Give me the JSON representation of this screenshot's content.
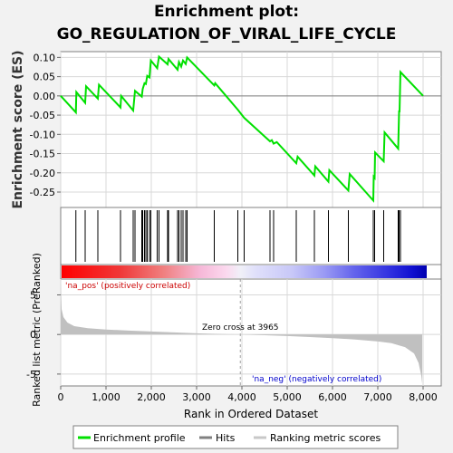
{
  "title_lines": [
    "Enrichment plot:",
    "GO_REGULATION_OF_VIRAL_LIFE_CYCLE"
  ],
  "chart_data": {
    "type": "line",
    "top_panel": {
      "ylabel": "Enrichment score (ES)",
      "ylim": [
        -0.29,
        0.115
      ],
      "yticks": [
        0.1,
        0.05,
        0.0,
        -0.05,
        -0.1,
        -0.15,
        -0.2,
        -0.25
      ],
      "ytick_labels": [
        "0.10",
        "0.05",
        "0.00",
        "-0.05",
        "-0.10",
        "-0.15",
        "-0.20",
        "-0.25"
      ],
      "series": {
        "color": "#00e000",
        "points": [
          [
            0,
            0.0
          ],
          [
            335,
            -0.043
          ],
          [
            345,
            0.01
          ],
          [
            540,
            -0.018
          ],
          [
            560,
            0.025
          ],
          [
            820,
            -0.007
          ],
          [
            845,
            0.029
          ],
          [
            1320,
            -0.03
          ],
          [
            1335,
            0.0
          ],
          [
            1600,
            -0.038
          ],
          [
            1640,
            0.013
          ],
          [
            1790,
            -0.002
          ],
          [
            1810,
            0.018
          ],
          [
            1850,
            0.033
          ],
          [
            1880,
            0.031
          ],
          [
            1910,
            0.052
          ],
          [
            1960,
            0.048
          ],
          [
            1990,
            0.092
          ],
          [
            2130,
            0.072
          ],
          [
            2170,
            0.102
          ],
          [
            2360,
            0.082
          ],
          [
            2380,
            0.096
          ],
          [
            2580,
            0.068
          ],
          [
            2610,
            0.088
          ],
          [
            2660,
            0.076
          ],
          [
            2700,
            0.092
          ],
          [
            2760,
            0.083
          ],
          [
            2790,
            0.1
          ],
          [
            3390,
            0.027
          ],
          [
            3410,
            0.033
          ],
          [
            3910,
            -0.036
          ],
          [
            4050,
            -0.057
          ],
          [
            4620,
            -0.118
          ],
          [
            4660,
            -0.115
          ],
          [
            4700,
            -0.124
          ],
          [
            4770,
            -0.12
          ],
          [
            5200,
            -0.175
          ],
          [
            5230,
            -0.158
          ],
          [
            5600,
            -0.207
          ],
          [
            5620,
            -0.183
          ],
          [
            5910,
            -0.223
          ],
          [
            5930,
            -0.193
          ],
          [
            6350,
            -0.246
          ],
          [
            6380,
            -0.203
          ],
          [
            6900,
            -0.272
          ],
          [
            6910,
            -0.21
          ],
          [
            6930,
            -0.213
          ],
          [
            6940,
            -0.147
          ],
          [
            7130,
            -0.17
          ],
          [
            7150,
            -0.095
          ],
          [
            7450,
            -0.137
          ],
          [
            7470,
            -0.04
          ],
          [
            7480,
            -0.04
          ],
          [
            7500,
            0.062
          ],
          [
            8000,
            0.0
          ]
        ]
      }
    },
    "hit_positions": [
      335,
      540,
      820,
      1320,
      1600,
      1640,
      1790,
      1810,
      1850,
      1880,
      1910,
      1960,
      1990,
      2130,
      2170,
      2360,
      2380,
      2580,
      2610,
      2660,
      2700,
      2760,
      2790,
      3390,
      3910,
      4050,
      4620,
      4700,
      5200,
      5600,
      5910,
      6350,
      6900,
      6930,
      7130,
      7450,
      7470,
      7500
    ],
    "bottom_panel": {
      "xlabel": "Rank in Ordered Dataset",
      "ylabel": "Ranked list metric (PreRanked)",
      "xlim": [
        0,
        8400
      ],
      "ylim": [
        -6.5,
        7.0
      ],
      "xticks": [
        0,
        1000,
        2000,
        3000,
        4000,
        5000,
        6000,
        7000,
        8000
      ],
      "xtick_labels": [
        "0",
        "1,000",
        "2,000",
        "3,000",
        "4,000",
        "5,000",
        "6,000",
        "7,000",
        "8,000"
      ],
      "yticks": [
        5,
        0,
        -5
      ],
      "ytick_labels": [
        "5",
        "0",
        "-5"
      ],
      "metric_profile": [
        [
          0,
          6.5
        ],
        [
          20,
          3.2
        ],
        [
          60,
          2.2
        ],
        [
          150,
          1.5
        ],
        [
          300,
          1.05
        ],
        [
          600,
          0.8
        ],
        [
          1000,
          0.62
        ],
        [
          1500,
          0.5
        ],
        [
          2000,
          0.38
        ],
        [
          2500,
          0.26
        ],
        [
          3000,
          0.15
        ],
        [
          3500,
          0.06
        ],
        [
          3965,
          0.0
        ],
        [
          4500,
          -0.1
        ],
        [
          5000,
          -0.2
        ],
        [
          5500,
          -0.32
        ],
        [
          6000,
          -0.46
        ],
        [
          6500,
          -0.63
        ],
        [
          7000,
          -0.88
        ],
        [
          7300,
          -1.1
        ],
        [
          7600,
          -1.6
        ],
        [
          7800,
          -2.4
        ],
        [
          7900,
          -3.6
        ],
        [
          7960,
          -5.2
        ],
        [
          7980,
          -6.2
        ]
      ],
      "zero_cross_rank": 3965,
      "zero_cross_label": "Zero cross at 3965",
      "pos_label": "'na_pos' (positively correlated)",
      "neg_label": "'na_neg' (negatively correlated)"
    },
    "legend": {
      "entries": [
        {
          "label": "Enrichment profile",
          "color": "#00e000"
        },
        {
          "label": "Hits",
          "color": "#000000"
        },
        {
          "label": "Ranking metric scores",
          "color": "#c0c0c0"
        }
      ],
      "placement": "bottom"
    },
    "colors": {
      "pos_label": "#cc0000",
      "neg_label": "#0000cc",
      "grid": "#d8d8d8"
    },
    "grid": true
  }
}
